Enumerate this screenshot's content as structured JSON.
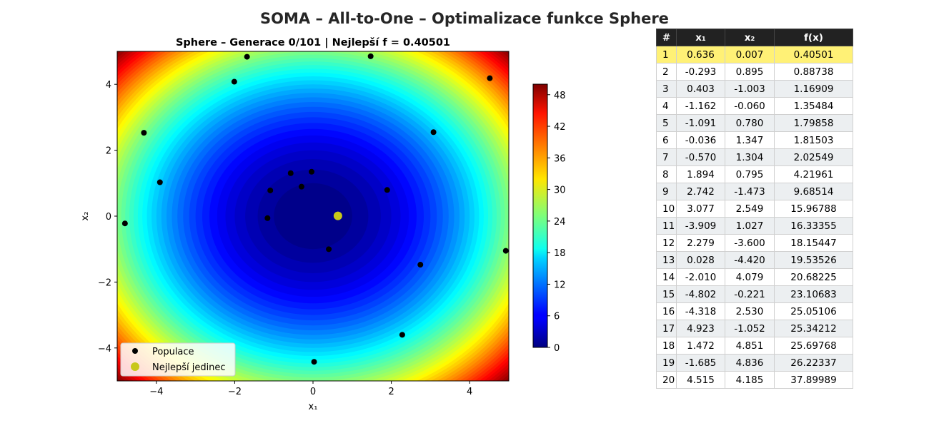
{
  "figure": {
    "suptitle": "SOMA – All-to-One – Optimalizace funkce Sphere"
  },
  "chart_data": {
    "type": "scatter",
    "title": "Sphere – Generace 0/101 | Nejlepší f = 0.40501",
    "xlabel": "x₁",
    "ylabel": "x₂",
    "xlim": [
      -5,
      5
    ],
    "ylim": [
      -5,
      5
    ],
    "xticks": [
      "−4",
      "−2",
      "0",
      "2",
      "4"
    ],
    "yticks": [
      "−4",
      "−2",
      "0",
      "2",
      "4"
    ],
    "xtick_values": [
      -4,
      -2,
      0,
      2,
      4
    ],
    "ytick_values": [
      -4,
      -2,
      0,
      2,
      4
    ],
    "background": "filled contour of f(x) = x₁² + x₂² (jet colormap)",
    "colorbar": {
      "ticks": [
        "0",
        "6",
        "12",
        "18",
        "24",
        "30",
        "36",
        "42",
        "48"
      ],
      "tick_values": [
        0,
        6,
        12,
        18,
        24,
        30,
        36,
        42,
        48
      ],
      "range": [
        0,
        50
      ],
      "colormap": "jet"
    },
    "legend_position": "lower-left",
    "series": [
      {
        "name": "Populace",
        "color": "#000000",
        "points": [
          [
            0.636,
            0.007
          ],
          [
            -0.293,
            0.895
          ],
          [
            0.403,
            -1.003
          ],
          [
            -1.162,
            -0.06
          ],
          [
            -1.091,
            0.78
          ],
          [
            -0.036,
            1.347
          ],
          [
            -0.57,
            1.304
          ],
          [
            1.894,
            0.795
          ],
          [
            2.742,
            -1.473
          ],
          [
            3.077,
            2.549
          ],
          [
            -3.909,
            1.027
          ],
          [
            2.279,
            -3.6
          ],
          [
            0.028,
            -4.42
          ],
          [
            -2.01,
            4.079
          ],
          [
            -4.802,
            -0.221
          ],
          [
            -4.318,
            2.53
          ],
          [
            4.923,
            -1.052
          ],
          [
            1.472,
            4.851
          ],
          [
            -1.685,
            4.836
          ],
          [
            4.515,
            4.185
          ]
        ]
      },
      {
        "name": "Nejlepší jedinec",
        "color": "#c8c81a",
        "points": [
          [
            0.636,
            0.007
          ]
        ]
      }
    ]
  },
  "table": {
    "headers": [
      "#",
      "x₁",
      "x₂",
      "f(x)"
    ],
    "highlight_color": "#fff176",
    "rows": [
      [
        "1",
        "0.636",
        "0.007",
        "0.40501"
      ],
      [
        "2",
        "-0.293",
        "0.895",
        "0.88738"
      ],
      [
        "3",
        "0.403",
        "-1.003",
        "1.16909"
      ],
      [
        "4",
        "-1.162",
        "-0.060",
        "1.35484"
      ],
      [
        "5",
        "-1.091",
        "0.780",
        "1.79858"
      ],
      [
        "6",
        "-0.036",
        "1.347",
        "1.81503"
      ],
      [
        "7",
        "-0.570",
        "1.304",
        "2.02549"
      ],
      [
        "8",
        "1.894",
        "0.795",
        "4.21961"
      ],
      [
        "9",
        "2.742",
        "-1.473",
        "9.68514"
      ],
      [
        "10",
        "3.077",
        "2.549",
        "15.96788"
      ],
      [
        "11",
        "-3.909",
        "1.027",
        "16.33355"
      ],
      [
        "12",
        "2.279",
        "-3.600",
        "18.15447"
      ],
      [
        "13",
        "0.028",
        "-4.420",
        "19.53526"
      ],
      [
        "14",
        "-2.010",
        "4.079",
        "20.68225"
      ],
      [
        "15",
        "-4.802",
        "-0.221",
        "23.10683"
      ],
      [
        "16",
        "-4.318",
        "2.530",
        "25.05106"
      ],
      [
        "17",
        "4.923",
        "-1.052",
        "25.34212"
      ],
      [
        "18",
        "1.472",
        "4.851",
        "25.69768"
      ],
      [
        "19",
        "-1.685",
        "4.836",
        "26.22337"
      ],
      [
        "20",
        "4.515",
        "4.185",
        "37.89989"
      ]
    ]
  }
}
